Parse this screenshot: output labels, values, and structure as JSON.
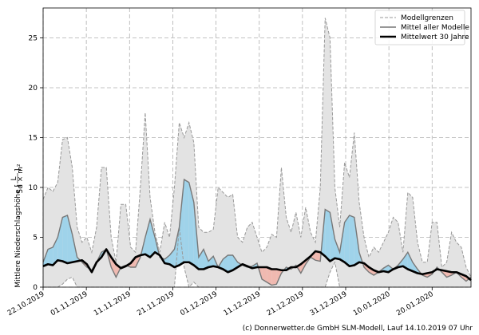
{
  "chart_data": {
    "type": "area",
    "ylabel_prefix": "Mittlere Niederschlagshöhe [",
    "ylabel_frac_num": "L",
    "ylabel_frac_den": "5d × m²",
    "ylabel_suffix": "]",
    "ylim": [
      0,
      28
    ],
    "yticks": [
      0,
      5,
      10,
      15,
      20,
      25
    ],
    "x_start": "2019-10-22",
    "x_end": "2020-01-29",
    "xticks": [
      "22.10.2019",
      "01.11.2019",
      "11.11.2019",
      "21.11.2019",
      "01.12.2019",
      "11.12.2019",
      "21.12.2019",
      "31.12.2019",
      "10.01.2020",
      "20.01.2020"
    ],
    "grid": true,
    "legend_position": "top-right",
    "colors": {
      "band_fill": "#e3e3e3",
      "band_edge": "#999999",
      "mean_models": "#777777",
      "climatology": "#000000",
      "above_fill": "#9fd3ea",
      "below_fill": "#f0b9b0"
    },
    "series": [
      {
        "name": "Modellgrenzen",
        "upper": [
          8.8,
          10,
          9.6,
          10.5,
          14.8,
          15,
          12,
          6,
          4.5,
          5,
          3.5,
          6,
          12,
          12,
          5,
          2.5,
          8.3,
          8.3,
          4,
          3.5,
          10,
          17.5,
          9,
          5.5,
          3.5,
          6.5,
          5,
          10,
          16.5,
          15,
          16.5,
          14.5,
          6,
          5.5,
          5.5,
          5.8,
          10,
          9.5,
          9,
          9.3,
          5,
          4.5,
          6,
          6.5,
          5,
          3.5,
          4,
          5.3,
          5,
          12,
          7,
          5.5,
          7.5,
          5,
          8,
          5.5,
          4.5,
          10,
          27,
          25,
          10,
          6,
          12.5,
          11,
          15.5,
          8.5,
          5,
          3,
          4,
          3.5,
          4.5,
          5.5,
          7,
          6.5,
          3.5,
          9.5,
          9,
          4.5,
          2.5,
          2.5,
          6.5,
          6.5,
          2,
          2.5,
          5.5,
          4.5,
          4,
          2,
          1
        ],
        "lower": [
          0,
          0,
          0,
          0,
          0.3,
          0.8,
          1,
          0,
          0,
          0,
          0,
          0,
          0,
          0,
          0,
          0,
          0,
          0,
          0,
          0,
          0,
          0,
          0,
          0,
          0,
          0,
          0,
          0,
          6,
          2,
          0,
          0.5,
          0,
          0,
          0,
          0,
          0,
          0,
          0,
          0,
          0,
          0,
          0,
          0,
          0,
          0,
          0,
          0,
          0,
          0,
          0,
          0,
          0,
          0,
          0,
          0,
          0,
          0,
          0,
          1.5,
          2.5,
          0,
          0,
          0,
          0,
          0,
          0,
          0,
          0,
          0,
          0,
          0,
          0,
          0,
          0,
          0,
          0,
          0,
          0,
          0,
          0,
          0,
          0,
          0,
          0,
          0,
          0,
          0,
          0
        ]
      },
      {
        "name": "Mittel aller Modelle",
        "values": [
          2.5,
          3.8,
          4,
          5,
          7,
          7.2,
          5.3,
          3,
          2.5,
          2,
          1.7,
          2.5,
          3.5,
          3.8,
          2,
          1,
          2,
          2.2,
          2,
          2,
          3,
          5,
          6.8,
          5,
          3,
          2.8,
          3.2,
          3.8,
          6,
          10.8,
          10.5,
          8.5,
          3,
          3.8,
          2.6,
          3.1,
          2,
          2.8,
          3.2,
          3.2,
          2.5,
          2.2,
          2,
          2.1,
          2.4,
          0.8,
          0.5,
          0.2,
          0.3,
          1.4,
          2,
          1.8,
          2.2,
          1.4,
          2.3,
          3,
          2.7,
          2.6,
          7.8,
          7.5,
          4.8,
          3.5,
          6.5,
          7.2,
          7,
          3.5,
          2,
          1.5,
          1.2,
          1.5,
          1.9,
          2.2,
          1.8,
          2.2,
          2.8,
          3.5,
          2.5,
          1.8,
          1.2,
          1,
          1.3,
          2,
          1.5,
          1,
          1.2,
          1.5,
          1,
          0.6,
          1
        ]
      },
      {
        "name": "Mittelwert 30 Jahre",
        "values": [
          2.1,
          2.3,
          2.2,
          2.7,
          2.6,
          2.4,
          2.5,
          2.6,
          2.7,
          2.3,
          1.5,
          2.5,
          3,
          3.8,
          3,
          2.3,
          1.9,
          2.1,
          2.4,
          3,
          3.2,
          3.3,
          3,
          3.5,
          3.2,
          2.4,
          2.3,
          2,
          2.2,
          2.5,
          2.5,
          2.2,
          1.8,
          1.8,
          2,
          2.1,
          2,
          1.8,
          1.5,
          1.7,
          2,
          2.3,
          2.1,
          1.9,
          2,
          2,
          2,
          1.8,
          1.8,
          1.7,
          1.7,
          2,
          2,
          2.3,
          2.7,
          3.1,
          3.6,
          3.5,
          3.1,
          2.6,
          2.9,
          2.8,
          2.5,
          2.1,
          2.2,
          2.5,
          2.4,
          2,
          1.7,
          1.5,
          1.6,
          1.5,
          1.8,
          2,
          2.1,
          1.8,
          1.6,
          1.4,
          1.3,
          1.4,
          1.5,
          1.8,
          1.7,
          1.6,
          1.5,
          1.5,
          1.3,
          1.1,
          0.7
        ]
      }
    ]
  },
  "credit": "(c) Donnerwetter.de GmbH SLM-Modell, Lauf 14.10.2019 07 Uhr"
}
